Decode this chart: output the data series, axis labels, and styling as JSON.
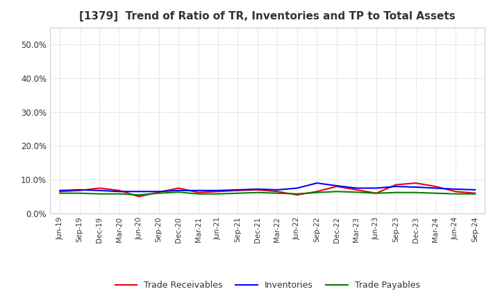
{
  "title": "[1379]  Trend of Ratio of TR, Inventories and TP to Total Assets",
  "xlabels": [
    "Jun-19",
    "Sep-19",
    "Dec-19",
    "Mar-20",
    "Jun-20",
    "Sep-20",
    "Dec-20",
    "Mar-21",
    "Jun-21",
    "Sep-21",
    "Dec-21",
    "Mar-22",
    "Jun-22",
    "Sep-22",
    "Dec-22",
    "Mar-23",
    "Jun-23",
    "Sep-23",
    "Dec-23",
    "Mar-24",
    "Jun-24",
    "Sep-24"
  ],
  "trade_receivables": [
    0.065,
    0.068,
    0.075,
    0.068,
    0.05,
    0.063,
    0.075,
    0.062,
    0.065,
    0.068,
    0.07,
    0.065,
    0.055,
    0.065,
    0.08,
    0.07,
    0.06,
    0.085,
    0.09,
    0.08,
    0.065,
    0.06
  ],
  "inventories": [
    0.068,
    0.07,
    0.068,
    0.065,
    0.065,
    0.065,
    0.068,
    0.068,
    0.068,
    0.07,
    0.072,
    0.07,
    0.075,
    0.09,
    0.082,
    0.075,
    0.075,
    0.08,
    0.078,
    0.075,
    0.072,
    0.07
  ],
  "trade_payables": [
    0.06,
    0.06,
    0.058,
    0.058,
    0.055,
    0.06,
    0.063,
    0.058,
    0.058,
    0.06,
    0.062,
    0.06,
    0.058,
    0.062,
    0.065,
    0.063,
    0.06,
    0.062,
    0.062,
    0.06,
    0.058,
    0.058
  ],
  "tr_color": "#e8000a",
  "inv_color": "#0000ff",
  "tp_color": "#008000",
  "ylim": [
    0.0,
    0.55
  ],
  "yticks": [
    0.0,
    0.1,
    0.2,
    0.3,
    0.4,
    0.5
  ],
  "background_color": "#ffffff",
  "plot_bg_color": "#ffffff",
  "grid_color": "#aaaaaa",
  "title_color": "#333333",
  "legend_labels": [
    "Trade Receivables",
    "Inventories",
    "Trade Payables"
  ]
}
